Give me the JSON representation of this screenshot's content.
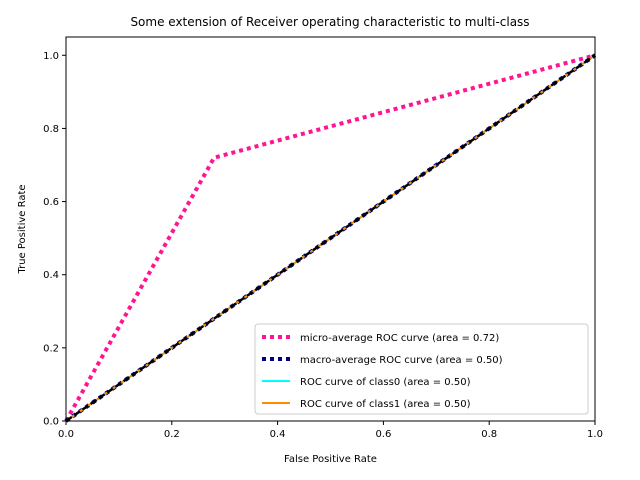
{
  "chart_data": {
    "type": "line",
    "title": "Some extension of Receiver operating characteristic to multi-class",
    "xlabel": "False Positive Rate",
    "ylabel": "True Positive Rate",
    "xlim": [
      0.0,
      1.0
    ],
    "ylim": [
      0.0,
      1.05
    ],
    "x_ticks": [
      0.0,
      0.2,
      0.4,
      0.6,
      0.8,
      1.0
    ],
    "y_ticks": [
      0.0,
      0.2,
      0.4,
      0.6,
      0.8,
      1.0
    ],
    "x_tick_labels": [
      "0.0",
      "0.2",
      "0.4",
      "0.6",
      "0.8",
      "1.0"
    ],
    "y_tick_labels": [
      "0.0",
      "0.2",
      "0.4",
      "0.6",
      "0.8",
      "1.0"
    ],
    "grid": false,
    "legend_position": "lower-right",
    "series": [
      {
        "name": "micro-average ROC curve (area = 0.72)",
        "color": "#ff1493",
        "style": "dotted",
        "x": [
          0.0,
          0.28,
          1.0
        ],
        "y": [
          0.0,
          0.72,
          1.0
        ]
      },
      {
        "name": "macro-average ROC curve (area = 0.50)",
        "color": "#000080",
        "style": "dotted",
        "x": [
          0.0,
          1.0
        ],
        "y": [
          0.0,
          1.0
        ]
      },
      {
        "name": "ROC curve of class0 (area = 0.50)",
        "color": "#00ffff",
        "style": "solid",
        "x": [
          0.0,
          1.0
        ],
        "y": [
          0.0,
          1.0
        ]
      },
      {
        "name": "ROC curve of class1 (area = 0.50)",
        "color": "#ff8c00",
        "style": "solid",
        "x": [
          0.0,
          1.0
        ],
        "y": [
          0.0,
          1.0
        ]
      }
    ],
    "reference_line": {
      "color": "#000000",
      "style": "dashed",
      "x": [
        0.0,
        1.0
      ],
      "y": [
        0.0,
        1.0
      ]
    }
  }
}
